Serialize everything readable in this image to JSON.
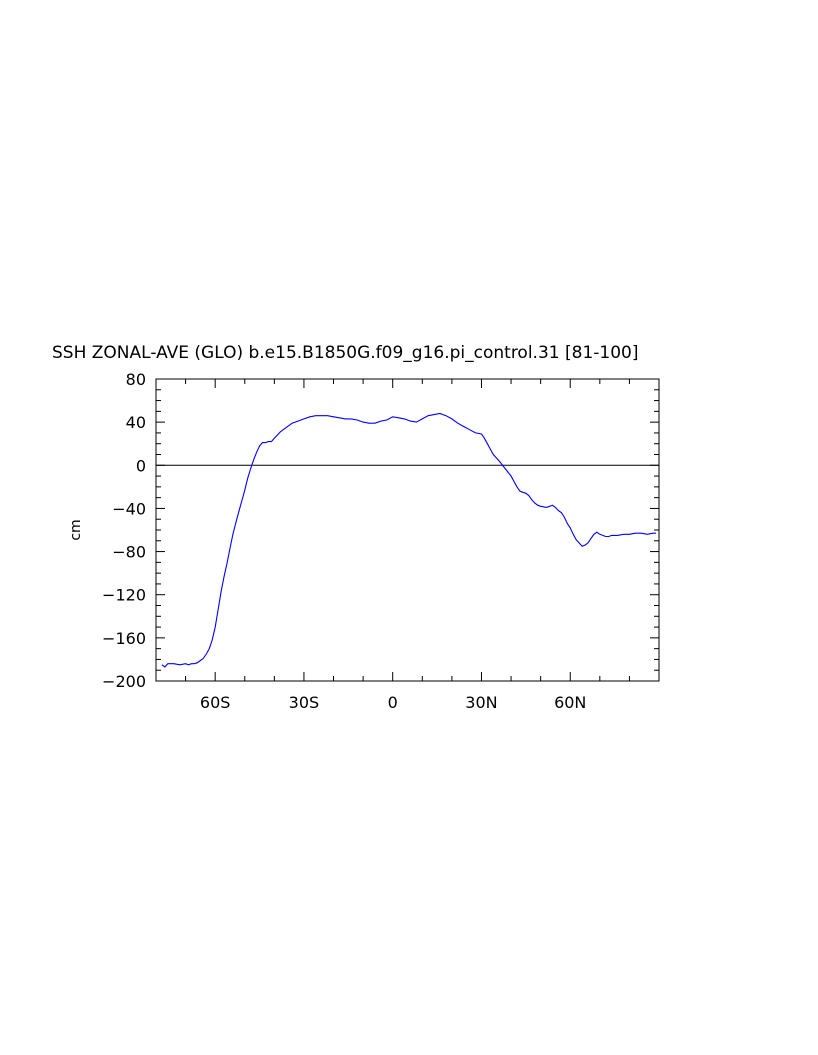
{
  "chart_data": {
    "type": "line",
    "title": "SSH ZONAL-AVE (GLO) b.e15.B1850G.f09_g16.pi_control.31 [81-100]",
    "xlabel": "",
    "ylabel": "cm",
    "xlim": [
      -80,
      90
    ],
    "ylim": [
      -200,
      80
    ],
    "x_ticks": [
      {
        "value": -60,
        "label": "60S"
      },
      {
        "value": -30,
        "label": "30S"
      },
      {
        "value": 0,
        "label": "0"
      },
      {
        "value": 30,
        "label": "30N"
      },
      {
        "value": 60,
        "label": "60N"
      }
    ],
    "y_ticks": [
      {
        "value": 80,
        "label": "80"
      },
      {
        "value": 40,
        "label": "40"
      },
      {
        "value": 0,
        "label": "0"
      },
      {
        "value": -40,
        "label": "-40"
      },
      {
        "value": -80,
        "label": "-80"
      },
      {
        "value": -120,
        "label": "-120"
      },
      {
        "value": -160,
        "label": "-160"
      },
      {
        "value": -200,
        "label": "-200"
      }
    ],
    "reference_line": 0,
    "grid": false,
    "legend": "none",
    "series": [
      {
        "color": "#0000ff",
        "x": [
          -78,
          -77,
          -76,
          -74,
          -72,
          -70,
          -69,
          -68,
          -67,
          -66,
          -65,
          -64,
          -63,
          -62,
          -61,
          -60,
          -59,
          -58,
          -57,
          -56,
          -55,
          -54,
          -53,
          -52,
          -51,
          -50,
          -49,
          -48,
          -47,
          -46,
          -45,
          -44,
          -43,
          -42,
          -41,
          -40,
          -39,
          -38,
          -37,
          -35,
          -34,
          -33,
          -32,
          -30,
          -28,
          -26,
          -24,
          -22,
          -20,
          -18,
          -16,
          -14,
          -12,
          -10,
          -8,
          -6,
          -4,
          -2,
          0,
          2,
          4,
          6,
          8,
          10,
          12,
          14,
          16,
          17,
          18,
          20,
          22,
          24,
          26,
          28,
          30,
          31,
          32,
          33,
          34,
          36,
          38,
          40,
          41,
          42,
          43,
          44,
          45,
          46,
          47,
          48,
          49,
          50,
          52,
          54,
          55,
          56,
          57,
          58,
          59,
          60,
          61,
          62,
          63,
          64,
          65,
          66,
          67,
          68,
          69,
          70,
          71,
          72,
          73,
          74,
          76,
          78,
          80,
          82,
          84,
          86,
          88,
          89
        ],
        "y": [
          -185,
          -187,
          -184,
          -184,
          -185,
          -184,
          -185,
          -184,
          -184,
          -183,
          -181,
          -179,
          -175,
          -170,
          -162,
          -150,
          -134,
          -117,
          -103,
          -91,
          -77,
          -64,
          -53,
          -43,
          -33,
          -23,
          -12,
          -3,
          5,
          12,
          18,
          21,
          21,
          22,
          22,
          25,
          28,
          31,
          33,
          37,
          39,
          40,
          41,
          43,
          45,
          46,
          46,
          46,
          45,
          44,
          43,
          43,
          42,
          40,
          39,
          39,
          41,
          42,
          45,
          44,
          43,
          41,
          40,
          43,
          46,
          47,
          48,
          47,
          46,
          43,
          39,
          36,
          33,
          30,
          29,
          25,
          20,
          15,
          10,
          4,
          -3,
          -10,
          -15,
          -20,
          -24,
          -25,
          -26,
          -28,
          -32,
          -35,
          -37,
          -38,
          -39,
          -37,
          -39,
          -42,
          -44,
          -48,
          -54,
          -58,
          -64,
          -69,
          -72,
          -75,
          -74,
          -72,
          -68,
          -64,
          -62,
          -64,
          -65,
          -66,
          -66,
          -65,
          -65,
          -64,
          -64,
          -63,
          -63,
          -64,
          -63,
          -63
        ]
      }
    ]
  }
}
